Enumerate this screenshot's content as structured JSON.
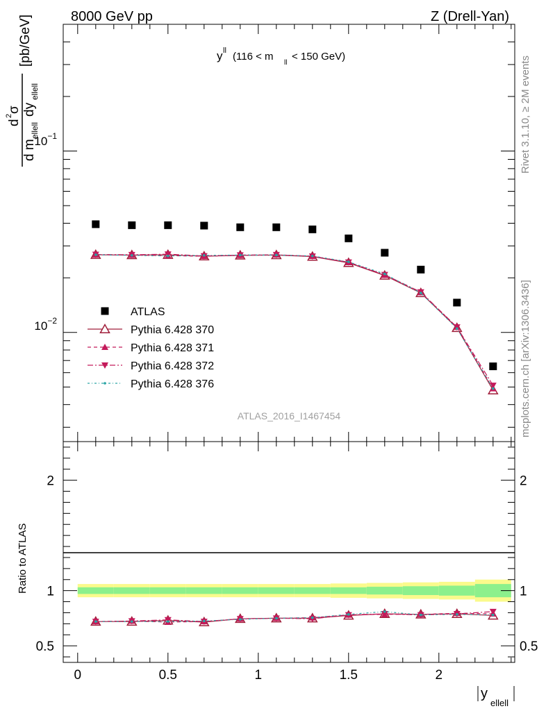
{
  "header": {
    "left": "8000 GeV pp",
    "right": "Z (Drell-Yan)",
    "side_top": "Rivet 3.1.10, ≥ 2M events",
    "side_bottom": "mcplots.cern.ch [arXiv:1306.3436]"
  },
  "chart_data": [
    {
      "type": "scatter",
      "title": "y^ll (116 < m_ll < 150 GeV)",
      "ylabel": "d²σ / d m_ellell dy_ellell [pb/GeV]",
      "yscale": "log",
      "ylim": [
        0.0025,
        0.5
      ],
      "xlim": [
        -0.08,
        2.42
      ],
      "x": [
        0.1,
        0.3,
        0.5,
        0.7,
        0.9,
        1.1,
        1.3,
        1.5,
        1.7,
        1.9,
        2.1,
        2.3
      ],
      "ytick_labels": [
        "10^{-2}",
        "10^{-1}"
      ],
      "legend_position": "lower-left",
      "watermark": "ATLAS_2016_I1467454",
      "series": [
        {
          "name": "ATLAS",
          "marker": "square",
          "color": "#000000",
          "values": [
            0.0395,
            0.039,
            0.039,
            0.0388,
            0.038,
            0.038,
            0.037,
            0.033,
            0.0275,
            0.0222,
            0.0146,
            0.0065
          ]
        },
        {
          "name": "Pythia 6.428 370",
          "marker": "triangle-up-open",
          "color": "#a01d3a",
          "line": "solid",
          "values": [
            0.0268,
            0.0267,
            0.0268,
            0.0263,
            0.0266,
            0.0267,
            0.0262,
            0.0242,
            0.0206,
            0.0165,
            0.0106,
            0.0048
          ]
        },
        {
          "name": "Pythia 6.428 371",
          "marker": "triangle-up",
          "color": "#c41a5a",
          "line": "dashed",
          "values": [
            0.0268,
            0.0267,
            0.0265,
            0.0263,
            0.0266,
            0.0268,
            0.0263,
            0.0243,
            0.0207,
            0.0166,
            0.0107,
            0.0049
          ]
        },
        {
          "name": "Pythia 6.428 372",
          "marker": "triangle-down",
          "color": "#c41a5a",
          "line": "dashdot",
          "values": [
            0.0269,
            0.0268,
            0.027,
            0.0264,
            0.0267,
            0.0268,
            0.0263,
            0.0244,
            0.0208,
            0.0167,
            0.0107,
            0.0051
          ]
        },
        {
          "name": "Pythia 6.428 376",
          "marker": "dot",
          "color": "#2aa5a5",
          "line": "dashdotted",
          "values": [
            0.0268,
            0.0266,
            0.0264,
            0.0266,
            0.0267,
            0.0267,
            0.0264,
            0.0245,
            0.021,
            0.0165,
            0.0105,
            0.0049
          ]
        }
      ]
    },
    {
      "type": "line",
      "ylabel": "Ratio to ATLAS",
      "xlabel": "|y_ellell|",
      "ylim": [
        0.35,
        2.35
      ],
      "xlim": [
        -0.08,
        2.42
      ],
      "x": [
        0.1,
        0.3,
        0.5,
        0.7,
        0.9,
        1.1,
        1.3,
        1.5,
        1.7,
        1.9,
        2.1,
        2.3
      ],
      "xticks": [
        0,
        0.5,
        1,
        1.5,
        2
      ],
      "xtick_labels": [
        "0",
        "0.5",
        "1",
        "1.5",
        "2"
      ],
      "yticks": [
        0.5,
        1,
        2
      ],
      "ytick_labels": [
        "0.5",
        "1",
        "2"
      ],
      "band_edges": [
        0,
        0.2,
        0.4,
        0.6,
        0.8,
        1.0,
        1.2,
        1.4,
        1.6,
        1.8,
        2.0,
        2.2,
        2.4
      ],
      "band_inner": [
        0.03,
        0.03,
        0.03,
        0.03,
        0.03,
        0.03,
        0.03,
        0.03,
        0.035,
        0.04,
        0.045,
        0.06
      ],
      "band_outer": [
        0.06,
        0.06,
        0.06,
        0.06,
        0.06,
        0.06,
        0.06,
        0.065,
        0.07,
        0.075,
        0.08,
        0.1
      ],
      "series": [
        {
          "name": "Pythia 6.428 370",
          "values": [
            0.72,
            0.72,
            0.73,
            0.715,
            0.745,
            0.75,
            0.75,
            0.775,
            0.79,
            0.785,
            0.79,
            0.775
          ]
        },
        {
          "name": "Pythia 6.428 371",
          "values": [
            0.72,
            0.725,
            0.715,
            0.72,
            0.745,
            0.75,
            0.755,
            0.78,
            0.785,
            0.785,
            0.795,
            0.79
          ]
        },
        {
          "name": "Pythia 6.428 372",
          "values": [
            0.72,
            0.725,
            0.735,
            0.72,
            0.745,
            0.75,
            0.745,
            0.78,
            0.79,
            0.78,
            0.79,
            0.81
          ]
        },
        {
          "name": "Pythia 6.428 376",
          "values": [
            0.72,
            0.72,
            0.72,
            0.725,
            0.74,
            0.75,
            0.755,
            0.785,
            0.81,
            0.78,
            0.785,
            0.78
          ]
        }
      ]
    }
  ]
}
